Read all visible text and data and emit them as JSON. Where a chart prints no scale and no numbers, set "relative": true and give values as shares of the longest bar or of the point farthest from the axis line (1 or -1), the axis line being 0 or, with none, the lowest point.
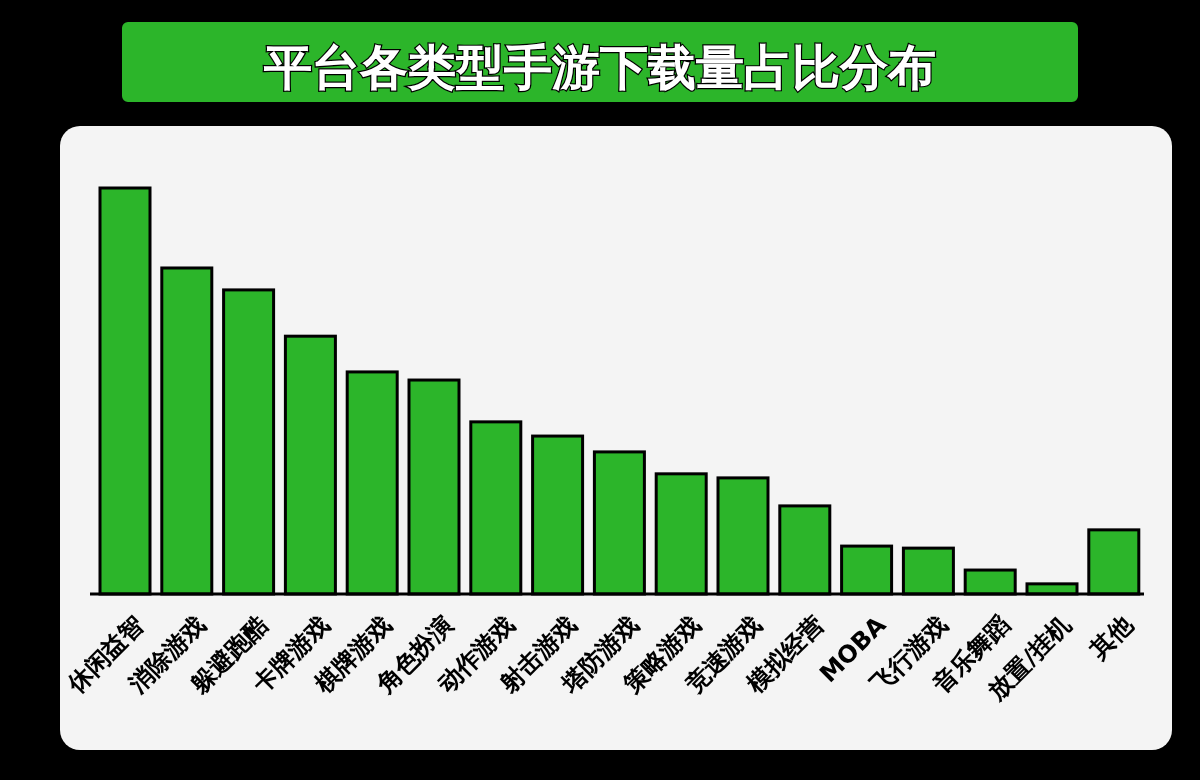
{
  "chart_data": {
    "type": "bar",
    "title": "平台各类型手游下载量占比分布",
    "relative": true,
    "color": "#2cb52a",
    "categories": [
      "休闲益智",
      "消除游戏",
      "躲避跑酷",
      "卡牌游戏",
      "棋牌游戏",
      "角色扮演",
      "动作游戏",
      "射击游戏",
      "塔防游戏",
      "策略游戏",
      "竞速游戏",
      "模拟经营",
      "MOBA",
      "飞行游戏",
      "音乐舞蹈",
      "放置/挂机",
      "其他"
    ],
    "values": [
      1,
      0.803,
      0.749,
      0.635,
      0.547,
      0.527,
      0.424,
      0.389,
      0.35,
      0.296,
      0.286,
      0.217,
      0.118,
      0.113,
      0.059,
      0.025,
      0.158
    ]
  }
}
